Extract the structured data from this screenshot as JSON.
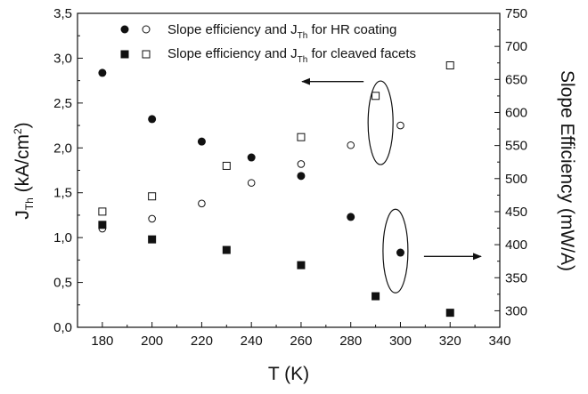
{
  "chart_data": {
    "type": "scatter",
    "xlabel": {
      "main": "T (K)"
    },
    "ylabel_left": {
      "main": "J",
      "sub": "Th",
      "units_open": " (kA/cm",
      "sup": "2",
      "units_close": ")"
    },
    "ylabel_right": {
      "main": "Slope Efficiency (mW/A)"
    },
    "xlim": [
      170,
      340
    ],
    "ylim_left": [
      0.0,
      3.5
    ],
    "ylim_right": [
      275,
      750
    ],
    "x_ticks": [
      180,
      200,
      220,
      240,
      260,
      280,
      300,
      320,
      340
    ],
    "x_tick_labels": [
      "180",
      "200",
      "220",
      "240",
      "260",
      "280",
      "300",
      "320",
      "340"
    ],
    "y_left_ticks": [
      0.0,
      0.5,
      1.0,
      1.5,
      2.0,
      2.5,
      3.0,
      3.5
    ],
    "y_left_tick_labels": [
      "0,0",
      "0,5",
      "1,0",
      "1,5",
      "2,0",
      "2,5",
      "3,0",
      "3,5"
    ],
    "y_right_ticks": [
      300,
      350,
      400,
      450,
      500,
      550,
      600,
      650,
      700,
      750
    ],
    "y_right_tick_labels": [
      "300",
      "350",
      "400",
      "450",
      "500",
      "550",
      "600",
      "650",
      "700",
      "750"
    ],
    "legend": {
      "placement": "top",
      "entries": [
        {
          "prefix": "Slope efficiency and J",
          "sub": "Th",
          "suffix": " for HR coating",
          "markers": [
            "filled-circle",
            "open-circle"
          ]
        },
        {
          "prefix": "Slope efficiency and J",
          "sub": "Th",
          "suffix": " for cleaved facets",
          "markers": [
            "filled-square",
            "open-square"
          ]
        }
      ]
    },
    "series": [
      {
        "marker": "filled-circle",
        "axis": "right",
        "x": [
          180,
          200,
          220,
          240,
          260,
          280,
          300
        ],
        "y": [
          660,
          590,
          556,
          532,
          504,
          442,
          388
        ]
      },
      {
        "marker": "open-circle",
        "axis": "left",
        "x": [
          180,
          200,
          220,
          240,
          260,
          280,
          300
        ],
        "y": [
          1.1,
          1.21,
          1.38,
          1.61,
          1.82,
          2.03,
          2.25
        ]
      },
      {
        "marker": "filled-square",
        "axis": "right",
        "x": [
          180,
          200,
          230,
          260,
          290,
          320
        ],
        "y": [
          430,
          408,
          392,
          369,
          322,
          297
        ]
      },
      {
        "marker": "open-square",
        "axis": "left",
        "x": [
          180,
          200,
          230,
          260,
          290,
          320
        ],
        "y": [
          1.29,
          1.46,
          1.8,
          2.12,
          2.58,
          2.92
        ]
      }
    ],
    "annotations": [
      {
        "type": "ellipse",
        "center": [
          292,
          2.28
        ],
        "axis": "left",
        "arrow": "left"
      },
      {
        "type": "ellipse",
        "center": [
          298,
          0.85
        ],
        "axis": "left",
        "arrow": "right"
      }
    ]
  }
}
